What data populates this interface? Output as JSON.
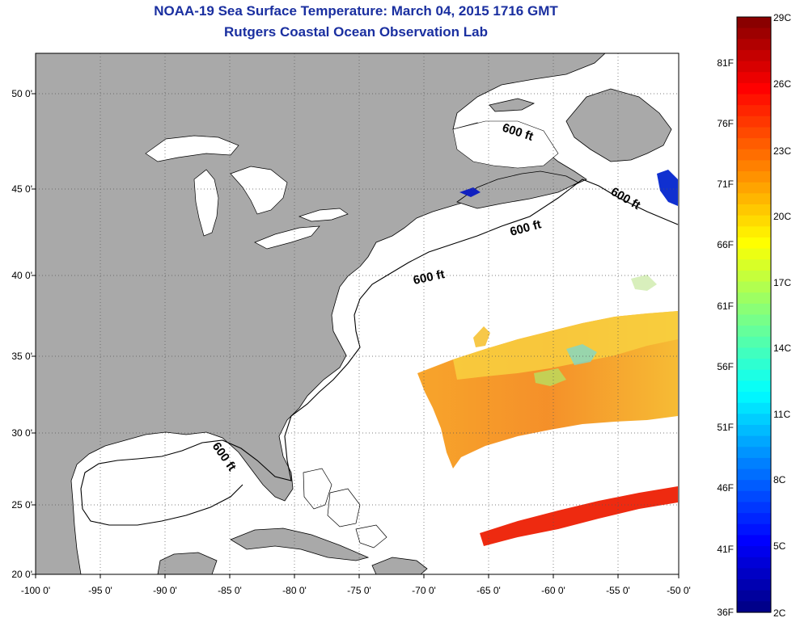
{
  "title": {
    "line1": "NOAA-19 Sea Surface Temperature:  March 04, 2015 1716 GMT",
    "line2": "Rutgers Coastal Ocean Observation Lab"
  },
  "map": {
    "lon_range": [
      -100,
      -50
    ],
    "lat_range": [
      20,
      52.5
    ],
    "lon_ticks": [
      "-100 0'",
      "-95 0'",
      "-90 0'",
      "-85 0'",
      "-80 0'",
      "-75 0'",
      "-70 0'",
      "-65 0'",
      "-60 0'",
      "-55 0'",
      "-50 0'"
    ],
    "lat_ticks": [
      "50 0'",
      "45 0'",
      "40 0'",
      "35 0'",
      "30 0'",
      "25 0'",
      "20 0'"
    ],
    "contour_labels": [
      "600 ft",
      "600 ft",
      "600 ft",
      "600 ft",
      "600 ft"
    ],
    "land_color": "#a9a9a9",
    "ocean_color": "#ffffff"
  },
  "colorbar": {
    "celsius": [
      "29C",
      "26C",
      "23C",
      "20C",
      "17C",
      "14C",
      "11C",
      "8C",
      "5C",
      "2C"
    ],
    "fahrenheit": [
      "81F",
      "76F",
      "71F",
      "66F",
      "61F",
      "56F",
      "51F",
      "46F",
      "41F",
      "36F"
    ],
    "colors": [
      "#800000",
      "#ff0000",
      "#ff8000",
      "#ffff00",
      "#80ff80",
      "#00ffff",
      "#0080ff",
      "#0000ff",
      "#000080"
    ]
  }
}
